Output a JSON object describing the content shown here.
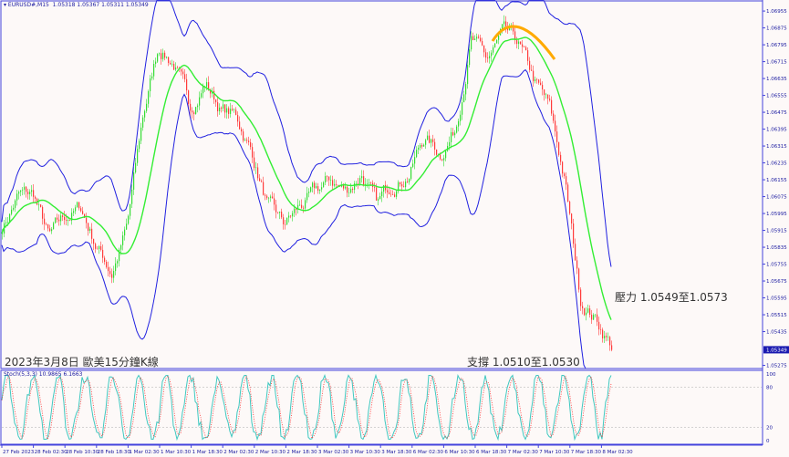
{
  "header": {
    "symbol": "EURUSD#,M15",
    "ohlc": "1.05318 1.05367 1.05311 1.05349"
  },
  "stoch_label": "Stoch(5,3,3) 10.9865 6.1663",
  "annotations": {
    "title": "2023年3月8日 歐美15分鐘K線",
    "resistance": "壓力 1.0549至1.0573",
    "support": "支撐 1.0510至1.0530"
  },
  "colors": {
    "bands": "#2020e0",
    "ma": "#33ee33",
    "bull": "#33dd33",
    "bear": "#ff3b3b",
    "stoch_main": "#40c8c0",
    "stoch_signal": "#ff3030",
    "arc": "#ffaa00",
    "current_price_bg": "#1a1ab0"
  },
  "chart_data": {
    "type": "candlestick",
    "price_axis": [
      "1.06955",
      "1.06875",
      "1.06795",
      "1.06715",
      "1.06635",
      "1.06555",
      "1.06475",
      "1.06395",
      "1.06315",
      "1.06235",
      "1.06155",
      "1.06075",
      "1.05995",
      "1.05915",
      "1.05835",
      "1.05755",
      "1.05675",
      "1.05595",
      "1.05515",
      "1.05435",
      "1.05275"
    ],
    "current_price": "1.05349",
    "ylim": [
      1.0526,
      1.0699
    ],
    "time_axis": [
      "27 Feb 2023",
      "28 Feb 02:30",
      "28 Feb 10:30",
      "28 Feb 18:30",
      "1 Mar 02:30",
      "1 Mar 10:30",
      "1 Mar 18:30",
      "2 Mar 02:30",
      "2 Mar 10:30",
      "2 Mar 18:30",
      "3 Mar 02:30",
      "3 Mar 10:30",
      "3 Mar 18:30",
      "6 Mar 02:30",
      "6 Mar 10:30",
      "6 Mar 18:30",
      "7 Mar 02:30",
      "7 Mar 10:30",
      "7 Mar 18:30",
      "8 Mar 02:30"
    ],
    "approx_close_path": [
      1.0593,
      1.0608,
      1.0608,
      1.0587,
      1.0597,
      1.0602,
      1.0585,
      1.0572,
      1.0593,
      1.0645,
      1.0679,
      1.0671,
      1.0649,
      1.0662,
      1.0649,
      1.0645,
      1.0628,
      1.0602,
      1.0593,
      1.0602,
      1.0608,
      1.0615,
      1.061,
      1.0619,
      1.0602,
      1.0615,
      1.0619,
      1.0636,
      1.0628,
      1.064,
      1.0683,
      1.0671,
      1.0683,
      1.0679,
      1.0662,
      1.0649,
      1.0615,
      1.0559,
      1.055,
      1.0537
    ],
    "stoch_axis": [
      "100",
      "80",
      "20",
      "0"
    ],
    "stoch_levels": [
      80,
      20
    ]
  }
}
